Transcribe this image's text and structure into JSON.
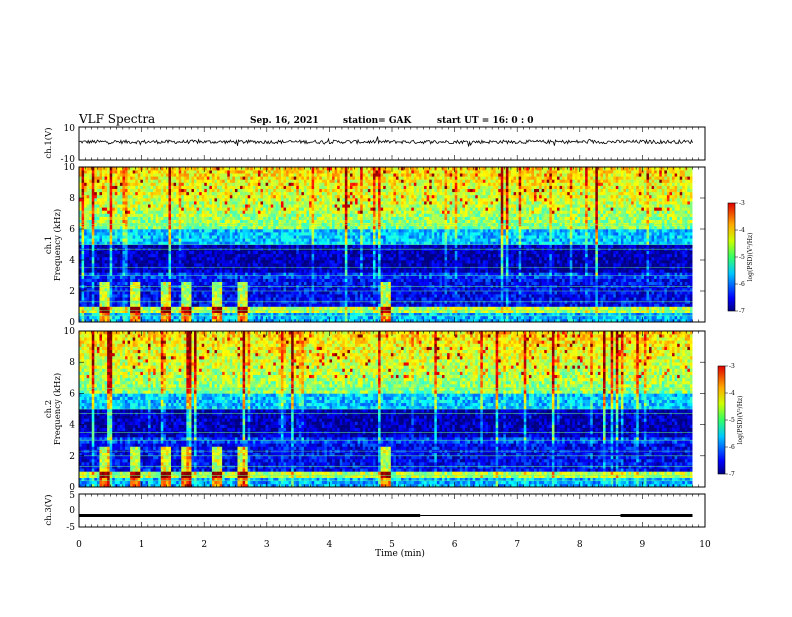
{
  "header": {
    "title": "VLF Spectra",
    "date": "Sep. 16, 2021",
    "station": "station= GAK",
    "start_ut": "start UT =  16: 0  : 0"
  },
  "chart_data": [
    {
      "type": "line",
      "ylabel": "ch.1(V)",
      "ylim": [
        -10,
        10
      ],
      "y_ticks": [
        "10",
        "-10"
      ],
      "xlim": [
        0,
        10
      ],
      "baseline": 1,
      "color": "#000000"
    },
    {
      "type": "heatmap",
      "ylabel": "ch.1\nFrequency (kHz)",
      "ylim": [
        0,
        10
      ],
      "y_ticks": [
        "0",
        "2",
        "4",
        "6",
        "8",
        "10"
      ],
      "xlim": [
        0,
        10
      ],
      "colorbar": {
        "label": "log(PSD)(V²/Hz)",
        "range": [
          -7,
          -3
        ],
        "ticks": [
          "-3",
          "-4",
          "-5",
          "-6",
          "-7"
        ]
      },
      "activity_bursts_min": [
        0.4,
        0.9,
        1.4,
        1.7,
        2.2,
        2.6,
        4.9
      ]
    },
    {
      "type": "heatmap",
      "ylabel": "ch.2\nFrequency (kHz)",
      "ylim": [
        0,
        10
      ],
      "y_ticks": [
        "0",
        "2",
        "4",
        "6",
        "8",
        "10"
      ],
      "xlim": [
        0,
        10
      ],
      "colorbar": {
        "label": "log(PSD)(V²/Hz)",
        "range": [
          -7,
          -3
        ],
        "ticks": [
          "-3",
          "-4",
          "-5",
          "-6",
          "-7"
        ]
      },
      "activity_bursts_min": [
        0.4,
        0.9,
        1.4,
        1.7,
        2.2,
        2.6,
        4.9
      ]
    },
    {
      "type": "line",
      "ylabel": "ch.3(V)",
      "ylim": [
        -5,
        5
      ],
      "y_ticks": [
        "5",
        "0",
        "-5"
      ],
      "xlim": [
        0,
        10
      ],
      "segments": [
        {
          "x0": 0.0,
          "x1": 5.45,
          "y": -1.5
        },
        {
          "x0": 8.65,
          "x1": 9.8,
          "y": -1.5
        }
      ],
      "color": "#000000"
    }
  ],
  "x_axis": {
    "label": "Time (min)",
    "ticks": [
      "0",
      "1",
      "2",
      "3",
      "4",
      "5",
      "6",
      "7",
      "8",
      "9",
      "10"
    ]
  }
}
